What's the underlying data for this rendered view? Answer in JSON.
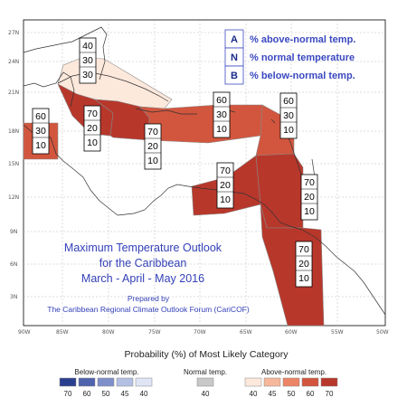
{
  "title": {
    "line1": "Maximum Temperature Outlook",
    "line2": "for the Caribbean",
    "line3": "March - April - May 2016"
  },
  "credit": {
    "line1": "Prepared by",
    "line2": "The Caribbean Regional Climate Outlook Forum (CariCOF)"
  },
  "key": [
    {
      "letter": "A",
      "text": "% above-normal temp."
    },
    {
      "letter": "N",
      "text": "% normal temperature"
    },
    {
      "letter": "B",
      "text": "% below-normal temp."
    }
  ],
  "lat_ticks": [
    "27N",
    "24N",
    "21N",
    "18N",
    "15N",
    "12N",
    "9N",
    "6N",
    "3N"
  ],
  "lon_ticks": [
    "90W",
    "85W",
    "80W",
    "75W",
    "70W",
    "65W",
    "60W",
    "55W",
    "50W"
  ],
  "regions": [
    {
      "id": "bahamas",
      "probs": [
        "40",
        "30",
        "30"
      ],
      "fill": "#fde8dc"
    },
    {
      "id": "cuba-central-america-north",
      "probs": [
        "70",
        "20",
        "10"
      ],
      "fill": "#b8372b"
    },
    {
      "id": "belize-yucatan",
      "probs": [
        "60",
        "30",
        "10"
      ],
      "fill": "#d2563e"
    },
    {
      "id": "greater-antilles",
      "probs": [
        "70",
        "20",
        "10"
      ],
      "fill": "#b8372b"
    },
    {
      "id": "hispaniola-east",
      "probs": [
        "60",
        "30",
        "10"
      ],
      "fill": "#d2563e"
    },
    {
      "id": "northern-leewards",
      "probs": [
        "60",
        "30",
        "10"
      ],
      "fill": "#d2563e"
    },
    {
      "id": "caribbean-south",
      "probs": [
        "70",
        "20",
        "10"
      ],
      "fill": "#b8372b"
    },
    {
      "id": "windwards",
      "probs": [
        "70",
        "20",
        "10"
      ],
      "fill": "#b8372b"
    },
    {
      "id": "guianas",
      "probs": [
        "70",
        "20",
        "10"
      ],
      "fill": "#b8372b"
    }
  ],
  "legend": {
    "title": "Probability (%) of Most Likely Category",
    "below_label": "Below-normal temp.",
    "normal_label": "Normal temp.",
    "above_label": "Above-normal temp.",
    "below": [
      {
        "value": "70",
        "color": "#2b3f8f"
      },
      {
        "value": "60",
        "color": "#5063ad"
      },
      {
        "value": "50",
        "color": "#7f8fc9"
      },
      {
        "value": "45",
        "color": "#b3bfe3"
      },
      {
        "value": "40",
        "color": "#dfe5f5"
      }
    ],
    "normal": [
      {
        "value": "40",
        "color": "#c8c8c8"
      }
    ],
    "above": [
      {
        "value": "40",
        "color": "#fde8dc"
      },
      {
        "value": "45",
        "color": "#f6b79a"
      },
      {
        "value": "50",
        "color": "#ec8466"
      },
      {
        "value": "60",
        "color": "#d2563e"
      },
      {
        "value": "70",
        "color": "#b8372b"
      }
    ]
  }
}
